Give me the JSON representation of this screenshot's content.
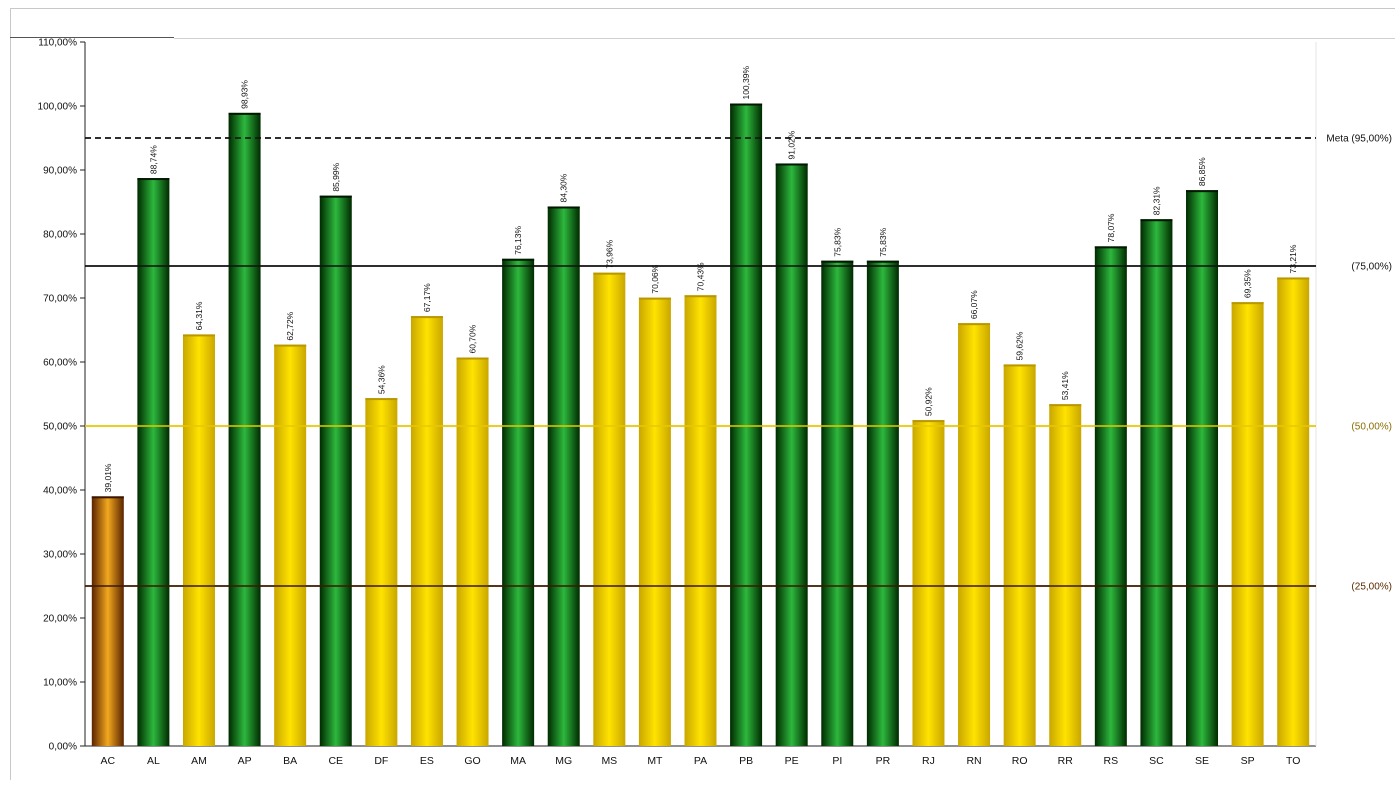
{
  "chart_data": {
    "type": "bar",
    "categories": [
      "AC",
      "AL",
      "AM",
      "AP",
      "BA",
      "CE",
      "DF",
      "ES",
      "GO",
      "MA",
      "MG",
      "MS",
      "MT",
      "PA",
      "PB",
      "PE",
      "PI",
      "PR",
      "RJ",
      "RN",
      "RO",
      "RR",
      "RS",
      "SC",
      "SE",
      "SP",
      "TO"
    ],
    "values": [
      39.01,
      88.74,
      64.31,
      98.93,
      62.72,
      85.99,
      54.36,
      67.17,
      60.7,
      76.13,
      84.3,
      73.96,
      70.06,
      70.43,
      100.39,
      91.02,
      75.83,
      75.83,
      50.92,
      66.07,
      59.62,
      53.41,
      78.07,
      82.31,
      86.85,
      69.35,
      73.21
    ],
    "value_labels": [
      "39,01%",
      "88,74%",
      "64,31%",
      "98,93%",
      "62,72%",
      "85,99%",
      "54,36%",
      "67,17%",
      "60,70%",
      "76,13%",
      "84,30%",
      "73,96%",
      "70,06%",
      "70,43%",
      "100,39%",
      "91,02%",
      "75,83%",
      "75,83%",
      "50,92%",
      "66,07%",
      "59,62%",
      "53,41%",
      "78,07%",
      "82,31%",
      "86,85%",
      "69,35%",
      "73,21%"
    ],
    "y_tick_labels": [
      "0,00%",
      "10,00%",
      "20,00%",
      "30,00%",
      "40,00%",
      "50,00%",
      "60,00%",
      "70,00%",
      "80,00%",
      "90,00%",
      "100,00%",
      "110,00%"
    ],
    "ylim": [
      0,
      110
    ],
    "title": "",
    "xlabel": "",
    "ylabel": "",
    "grid": false,
    "reference_lines": [
      {
        "value": 95,
        "label": "Meta (95,00%)",
        "style": "dashed",
        "color": "#111111",
        "label_color": "#111111"
      },
      {
        "value": 75,
        "label": "(75,00%)",
        "style": "solid",
        "color": "#111111",
        "label_color": "#111111"
      },
      {
        "value": 50,
        "label": "(50,00%)",
        "style": "solid",
        "color": "#e8c800",
        "label_color": "#8a6d00"
      },
      {
        "value": 25,
        "label": "(25,00%)",
        "style": "solid",
        "color": "#3a1a00",
        "label_color": "#5a2a00"
      }
    ],
    "bar_colors": {
      "green": {
        "edge": "#003000",
        "mid": "#2db83d"
      },
      "yellow": {
        "edge": "#c9a800",
        "mid": "#ffe100"
      },
      "orange": {
        "edge": "#6b2d00",
        "mid": "#f2a81e"
      }
    }
  }
}
